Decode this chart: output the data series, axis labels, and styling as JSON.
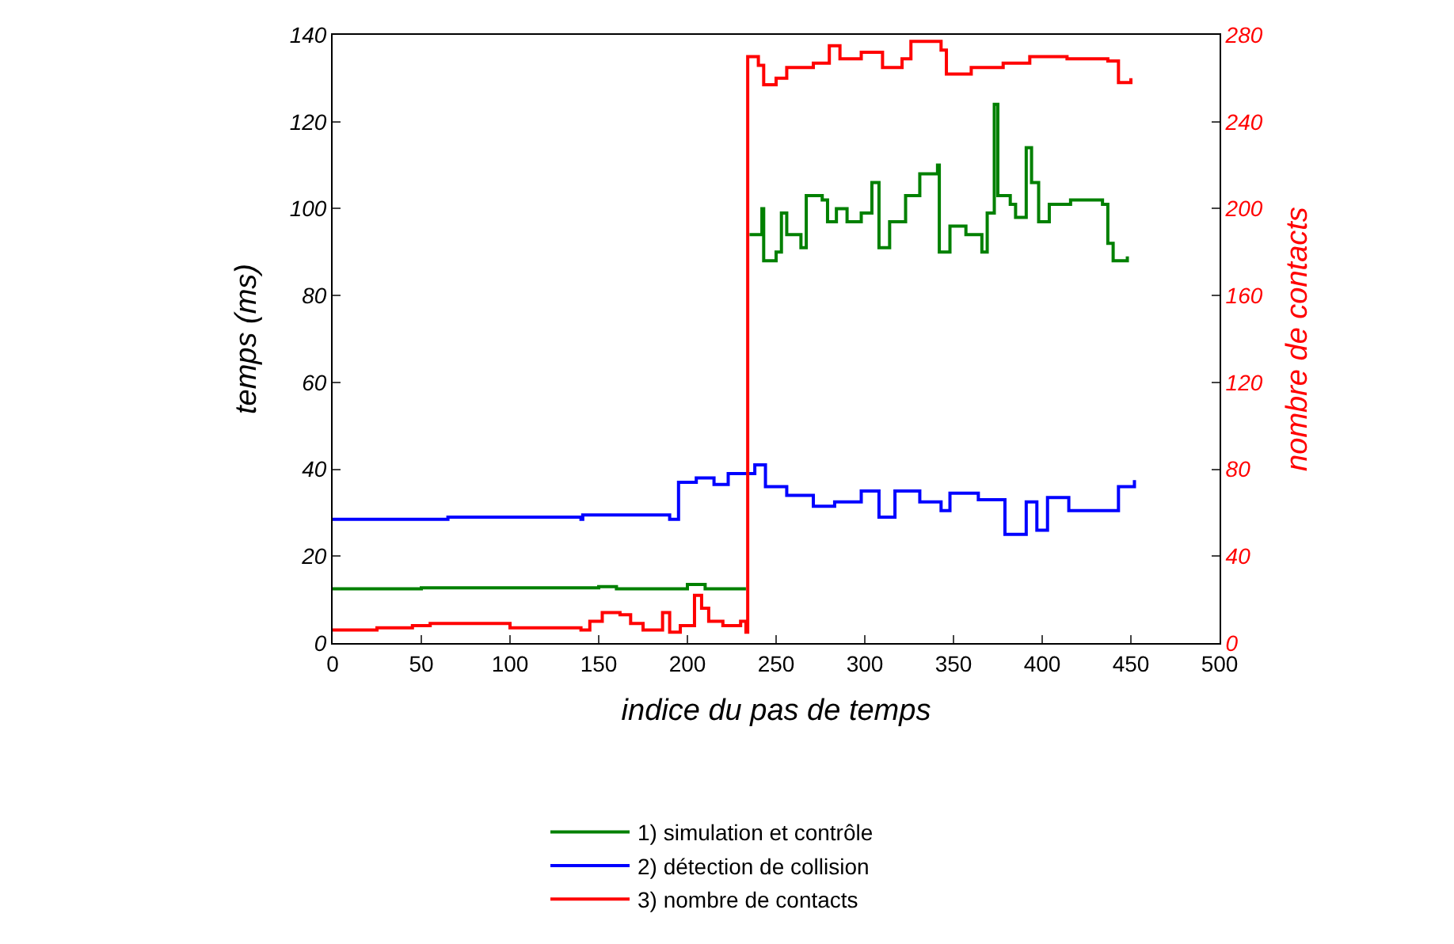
{
  "chart_data": {
    "type": "step",
    "xlabel": "indice du pas de temps",
    "ylabel": "temps (ms)",
    "y2label": "nombre de contacts",
    "xlim": [
      0,
      500
    ],
    "xticks": [
      0,
      50,
      100,
      150,
      200,
      250,
      300,
      350,
      400,
      450,
      500
    ],
    "ylim": [
      0,
      140
    ],
    "yticks": [
      0,
      20,
      40,
      60,
      80,
      100,
      120,
      140
    ],
    "y2lim": [
      0,
      280
    ],
    "y2ticks": [
      0,
      40,
      80,
      120,
      160,
      200,
      240,
      280
    ],
    "legend": "bottom",
    "marker": "none",
    "line_style": "solid",
    "series": [
      {
        "name": "1) simulation et contrôle",
        "color": "#008000",
        "x": [
          0,
          50,
          150,
          160,
          200,
          210,
          233,
          234,
          235,
          242,
          243,
          250,
          253,
          256,
          264,
          267,
          276,
          279,
          284,
          290,
          298,
          304,
          308,
          314,
          323,
          331,
          341,
          342,
          348,
          357,
          366,
          369,
          373,
          375,
          382,
          385,
          391,
          394,
          398,
          404,
          416,
          434,
          437,
          440,
          448
        ],
        "values": [
          12.5,
          12.7,
          13,
          12.5,
          13.5,
          12.5,
          12.5,
          null,
          94,
          100,
          88,
          90,
          99,
          94,
          91,
          103,
          102,
          97,
          100,
          97,
          99,
          106,
          91,
          97,
          103,
          108,
          110,
          90,
          96,
          94,
          90,
          99,
          124,
          103,
          101,
          98,
          114,
          106,
          97,
          101,
          102,
          101,
          92,
          88,
          89
        ]
      },
      {
        "name": "2) détection de collision",
        "color": "#0000ff",
        "x": [
          0,
          60,
          65,
          140,
          141,
          190,
          195,
          205,
          215,
          223,
          238,
          244,
          256,
          271,
          283,
          298,
          308,
          317,
          331,
          343,
          348,
          364,
          379,
          391,
          397,
          403,
          415,
          439,
          443,
          452
        ],
        "values": [
          28.5,
          28.5,
          29,
          28.5,
          29.5,
          28.5,
          37,
          38,
          36.5,
          39,
          41,
          36,
          34,
          31.5,
          32.5,
          35,
          29,
          35,
          32.5,
          30.5,
          34.5,
          33,
          25,
          32.5,
          26,
          33.5,
          30.5,
          30.5,
          36,
          37.5
        ]
      },
      {
        "name": "3) nombre de contacts",
        "color": "#ff0000",
        "axis": "y2",
        "x": [
          0,
          20,
          25,
          45,
          55,
          80,
          100,
          140,
          145,
          152,
          162,
          168,
          175,
          185,
          186,
          190,
          196,
          204,
          208,
          212,
          220,
          230,
          233,
          234,
          240,
          243,
          250,
          256,
          271,
          280,
          286,
          298,
          310,
          321,
          326,
          343,
          346,
          360,
          378,
          393,
          414,
          437,
          443,
          450
        ],
        "values": [
          6,
          6,
          7,
          8,
          9,
          9,
          7,
          6,
          10,
          14,
          13,
          9,
          6,
          6,
          14,
          5,
          8,
          22,
          16,
          10,
          8,
          10,
          5,
          270,
          266,
          257,
          260,
          265,
          267,
          275,
          269,
          272,
          265,
          269,
          277,
          273,
          262,
          265,
          267,
          270,
          269,
          268,
          258,
          260
        ]
      }
    ]
  }
}
